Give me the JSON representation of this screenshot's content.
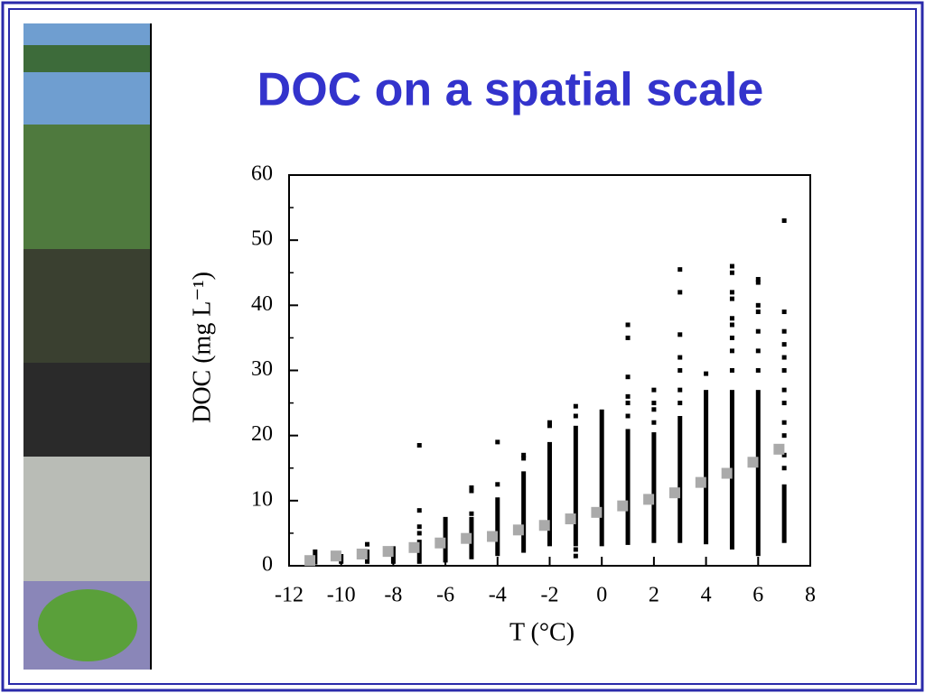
{
  "chart_data": {
    "type": "scatter",
    "title": "DOC on a spatial scale",
    "x_label": "T (°C)",
    "y_label": "DOC (mg L⁻¹)",
    "xlim": [
      -12,
      8
    ],
    "xticks": [
      -12,
      -10,
      -8,
      -6,
      -4,
      -2,
      0,
      2,
      4,
      6,
      8
    ],
    "ylim": [
      0,
      60
    ],
    "yticks": [
      0,
      10,
      20,
      30,
      40,
      50,
      60
    ],
    "grid": false,
    "ranges": {
      "color": "#000000",
      "x": [
        -11,
        -10,
        -9,
        -8,
        -7,
        -6,
        -5,
        -4,
        -3,
        -2,
        -1,
        0,
        1,
        2,
        3,
        4,
        5,
        6,
        7
      ],
      "low": [
        0.2,
        0.3,
        0.3,
        0.3,
        0.3,
        0.5,
        1,
        1.5,
        2,
        3,
        3,
        3,
        3.2,
        3.5,
        3.5,
        3.3,
        2.5,
        1.5,
        3.5
      ],
      "high": [
        2.5,
        1.8,
        2.5,
        3,
        4,
        7.5,
        7.5,
        10.5,
        14.5,
        19,
        21.5,
        24,
        21,
        20.5,
        23,
        27,
        27,
        27,
        12.5
      ]
    },
    "outliers": {
      "color": "#000000",
      "x": [
        -9,
        -7,
        -7,
        -7,
        -7,
        -5,
        -5,
        -5,
        -4,
        -4,
        -3,
        -3,
        -2,
        -2,
        -1,
        -1,
        -1,
        -1,
        1,
        1,
        1,
        1,
        1,
        1,
        2,
        2,
        2,
        2,
        3,
        3,
        3,
        3,
        3,
        3,
        3,
        4,
        5,
        5,
        5,
        5,
        5,
        5,
        5,
        5,
        5,
        6,
        6,
        6,
        6,
        6,
        6,
        6,
        7,
        7,
        7,
        7,
        7,
        7,
        7,
        7,
        7,
        7,
        7,
        7
      ],
      "values": [
        3.3,
        5,
        6,
        8.5,
        18.5,
        8,
        11.5,
        12,
        12.5,
        19,
        16.5,
        17,
        21.5,
        22,
        1.5,
        2.5,
        23,
        24.5,
        23,
        25,
        26,
        29,
        35,
        37,
        22,
        24,
        25,
        27,
        25,
        27,
        30,
        32,
        35.5,
        42,
        45.5,
        29.5,
        30,
        33,
        35,
        37,
        38,
        41,
        42,
        45,
        46,
        30,
        33,
        36,
        39,
        40,
        43.5,
        44,
        15,
        17,
        20,
        22,
        25,
        27,
        30,
        32,
        34,
        36,
        39,
        53
      ]
    },
    "means": {
      "color": "#aaaaaa",
      "x": [
        -11.2,
        -10.2,
        -9.2,
        -8.2,
        -7.2,
        -6.2,
        -5.2,
        -4.2,
        -3.2,
        -2.2,
        -1.2,
        -0.2,
        0.8,
        1.8,
        2.8,
        3.8,
        4.8,
        5.8,
        6.8
      ],
      "values": [
        0.8,
        1.5,
        1.8,
        2.2,
        2.8,
        3.5,
        4.2,
        4.5,
        5.5,
        6.2,
        7.2,
        8.2,
        9.2,
        10.2,
        11.2,
        12.8,
        14.2,
        15.9,
        17.9
      ]
    }
  }
}
